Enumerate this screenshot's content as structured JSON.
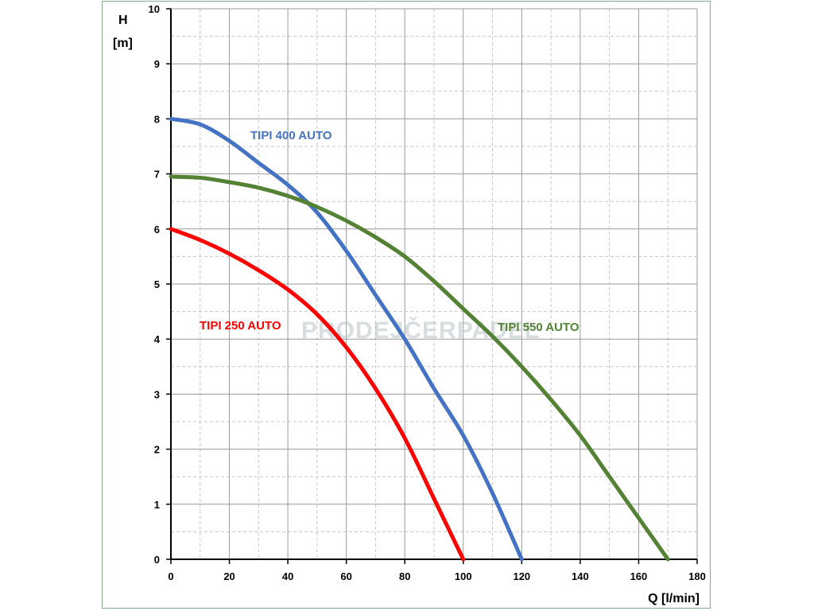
{
  "chart_data": {
    "type": "line",
    "title": "",
    "xlabel": "Q [l/min]",
    "ylabel_line1": "H",
    "ylabel_line2": "[m]",
    "xlim": [
      0,
      180
    ],
    "ylim": [
      0,
      10
    ],
    "x_ticks": [
      0,
      20,
      40,
      60,
      80,
      100,
      120,
      140,
      160,
      180
    ],
    "y_ticks": [
      0,
      1,
      2,
      3,
      4,
      5,
      6,
      7,
      8,
      9,
      10
    ],
    "x_minor_step": 10,
    "y_minor_step": 0.5,
    "grid": true,
    "legend": "inline labels",
    "watermark": "PRODEJČERPADEL",
    "series": [
      {
        "name": "TIPI 250 AUTO",
        "color": "#ff0000",
        "x": [
          0,
          10,
          20,
          30,
          40,
          50,
          60,
          70,
          80,
          90,
          95,
          100
        ],
        "y": [
          6.0,
          5.8,
          5.55,
          5.25,
          4.9,
          4.45,
          3.85,
          3.1,
          2.2,
          1.1,
          0.55,
          0.0
        ]
      },
      {
        "name": "TIPI 400 AUTO",
        "color": "#4472c4",
        "x": [
          0,
          10,
          20,
          30,
          40,
          50,
          60,
          70,
          80,
          90,
          100,
          110,
          120
        ],
        "y": [
          8.0,
          7.9,
          7.6,
          7.2,
          6.8,
          6.3,
          5.6,
          4.8,
          4.0,
          3.1,
          2.25,
          1.2,
          0.0
        ]
      },
      {
        "name": "TIPI 550 AUTO",
        "color": "#548235",
        "x": [
          0,
          10,
          20,
          30,
          40,
          50,
          60,
          70,
          80,
          90,
          100,
          110,
          120,
          130,
          140,
          150,
          160,
          170
        ],
        "y": [
          6.95,
          6.93,
          6.85,
          6.75,
          6.6,
          6.4,
          6.15,
          5.85,
          5.5,
          5.05,
          4.55,
          4.05,
          3.5,
          2.9,
          2.25,
          1.5,
          0.75,
          0.0
        ]
      }
    ]
  }
}
